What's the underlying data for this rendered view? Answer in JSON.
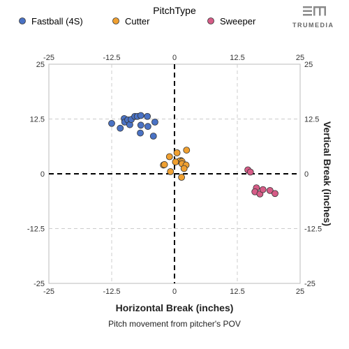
{
  "brand": {
    "name": "TRUMEDIA"
  },
  "chart_data": {
    "type": "scatter",
    "legend_title": "PitchType",
    "legend_position": "top",
    "xlabel": "Horizontal Break (inches)",
    "ylabel": "Vertical Break (inches)",
    "caption": "Pitch movement from pitcher's POV",
    "xlim": [
      -25,
      25
    ],
    "ylim": [
      -25,
      25
    ],
    "x_ticks": [
      -25,
      -12.5,
      0,
      12.5,
      25
    ],
    "y_ticks": [
      -25,
      -12.5,
      0,
      12.5,
      25
    ],
    "x_tick_labels": [
      "-25",
      "-12.5",
      "0",
      "12.5",
      "25"
    ],
    "y_tick_labels": [
      "-25",
      "-12.5",
      "0",
      "12.5",
      "25"
    ],
    "grid": true,
    "series": [
      {
        "name": "Fastball (4S)",
        "color": "#4a72c4",
        "points": [
          {
            "x": -12.5,
            "y": 11.5
          },
          {
            "x": -10.8,
            "y": 10.4
          },
          {
            "x": -10.0,
            "y": 12.6
          },
          {
            "x": -9.9,
            "y": 11.8
          },
          {
            "x": -9.3,
            "y": 12.3
          },
          {
            "x": -8.9,
            "y": 11.2
          },
          {
            "x": -8.6,
            "y": 12.4
          },
          {
            "x": -7.9,
            "y": 13.1
          },
          {
            "x": -7.4,
            "y": 13.1
          },
          {
            "x": -6.7,
            "y": 13.3
          },
          {
            "x": -6.7,
            "y": 11.1
          },
          {
            "x": -6.8,
            "y": 9.3
          },
          {
            "x": -5.4,
            "y": 13.1
          },
          {
            "x": -5.3,
            "y": 10.8
          },
          {
            "x": -3.9,
            "y": 11.8
          },
          {
            "x": -4.2,
            "y": 8.6
          }
        ]
      },
      {
        "name": "Cutter",
        "color": "#f0a030",
        "points": [
          {
            "x": -2.2,
            "y": 2.0
          },
          {
            "x": -2.0,
            "y": 2.1
          },
          {
            "x": -1.0,
            "y": 3.9
          },
          {
            "x": 0.5,
            "y": 4.8
          },
          {
            "x": 2.4,
            "y": 5.4
          },
          {
            "x": 1.3,
            "y": 3.0
          },
          {
            "x": 1.0,
            "y": 2.9
          },
          {
            "x": 1.5,
            "y": 2.8
          },
          {
            "x": 0.2,
            "y": 2.7
          },
          {
            "x": 1.5,
            "y": 2.3
          },
          {
            "x": 2.3,
            "y": 2.0
          },
          {
            "x": 1.9,
            "y": 1.2
          },
          {
            "x": -0.8,
            "y": 0.5
          },
          {
            "x": 1.4,
            "y": -0.8
          }
        ]
      },
      {
        "name": "Sweeper",
        "color": "#d65c87",
        "points": [
          {
            "x": 14.6,
            "y": 0.9
          },
          {
            "x": 15.1,
            "y": 0.4
          },
          {
            "x": 16.3,
            "y": -3.2
          },
          {
            "x": 16.0,
            "y": -4.1
          },
          {
            "x": 17.0,
            "y": -4.6
          },
          {
            "x": 17.6,
            "y": -3.6
          },
          {
            "x": 19.0,
            "y": -3.8
          },
          {
            "x": 20.0,
            "y": -4.5
          }
        ]
      }
    ]
  }
}
